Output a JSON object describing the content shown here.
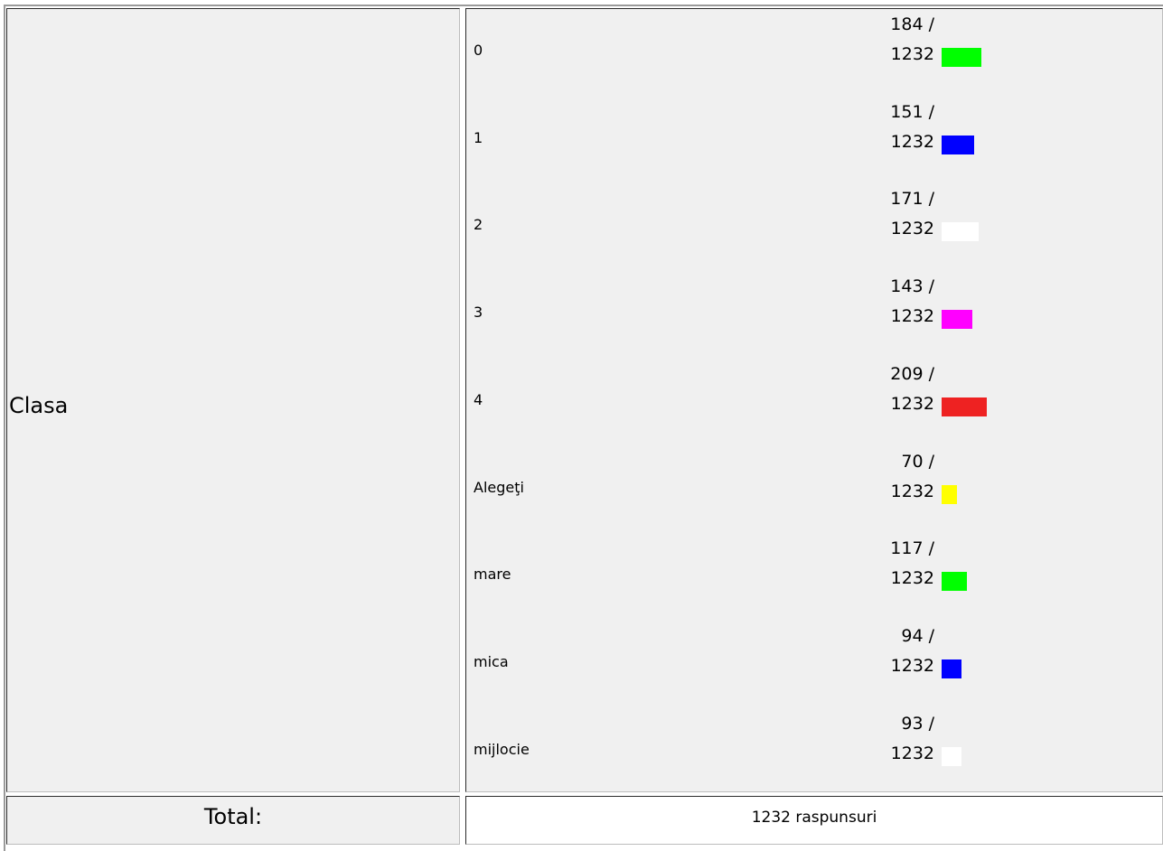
{
  "table": {
    "question_label": "Clasa",
    "total_label": "Total:",
    "total_value": "1232 raspunsuri"
  },
  "chart_data": {
    "type": "bar",
    "orientation": "horizontal",
    "categories": [
      "0",
      "1",
      "2",
      "3",
      "4",
      "Alegeţi",
      "mare",
      "mica",
      "mijlocie"
    ],
    "values": [
      184,
      151,
      171,
      143,
      209,
      70,
      117,
      94,
      93
    ],
    "total": 1232,
    "count_text": [
      "184 /",
      "151 /",
      "171 /",
      "143 /",
      "209 /",
      "70 /",
      "117 /",
      "94 /",
      "93 /"
    ],
    "total_text": "1232",
    "colors": [
      "#00ff00",
      "#0000ff",
      "#ffffff",
      "#ff00ff",
      "#ee2222",
      "#ffff00",
      "#00ff00",
      "#0000ff",
      "#ffffff"
    ]
  }
}
